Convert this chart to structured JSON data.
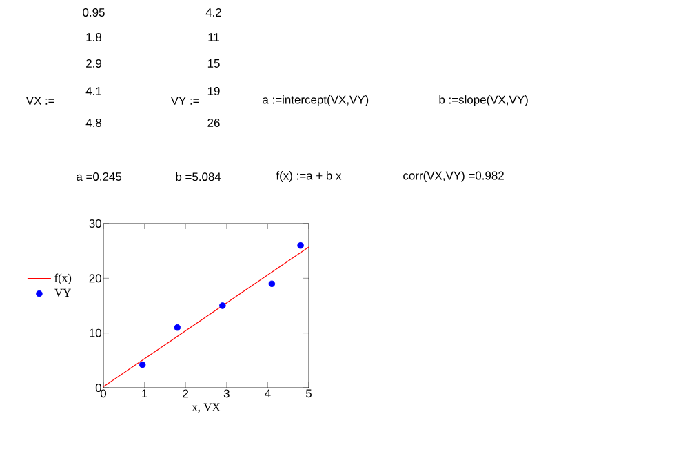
{
  "chart_data": {
    "type": "scatter",
    "xlabel": "x, VX",
    "xlim": [
      0,
      5
    ],
    "ylim": [
      0,
      30
    ],
    "xticks": [
      0,
      1,
      2,
      3,
      4,
      5
    ],
    "yticks": [
      0,
      10,
      20,
      30
    ],
    "grid": false,
    "legend": "left",
    "series": [
      {
        "name": "f(x)",
        "type": "line",
        "color": "#ff0000",
        "marker": "none",
        "line_style": "solid",
        "x": [
          0,
          5
        ],
        "values": [
          0.2,
          25.7
        ]
      },
      {
        "name": "VY",
        "color": "#0000ff",
        "marker": "circle",
        "x": [
          0.95,
          1.8,
          2.9,
          4.1,
          4.8
        ],
        "values": [
          4.2,
          11,
          15,
          19,
          26
        ]
      }
    ],
    "annotations": [
      "VX :=",
      "0.95",
      "1.8",
      "2.9",
      "4.1",
      "4.8",
      "VY :=",
      "4.2",
      "11",
      "15",
      "19",
      "26",
      "a :=intercept(VX,VY)",
      "b :=slope(VX,VY)",
      "a =0.245",
      "b =5.084",
      "f(x) :=a + b x",
      "corr(VX,VY) =0.982"
    ]
  }
}
